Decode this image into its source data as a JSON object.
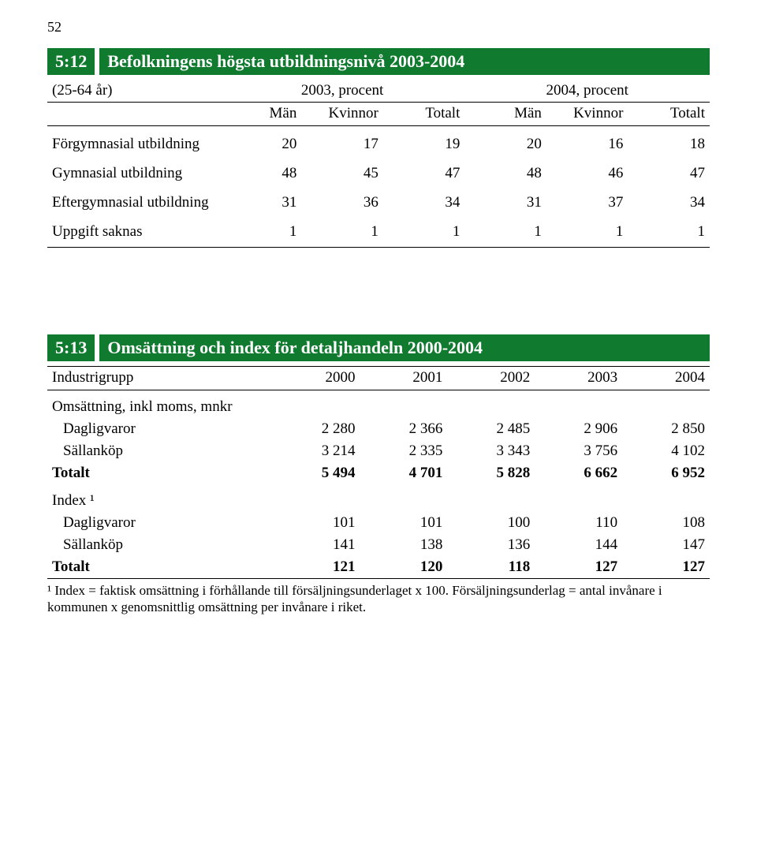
{
  "page_number": "52",
  "section1": {
    "num": "5:12",
    "title": "Befolkningens högsta utbildningsnivå 2003-2004",
    "subheader_left": "(25-64 år)",
    "year_a": "2003, procent",
    "year_b": "2004, procent",
    "col_labels": {
      "man": "Män",
      "kvinnor": "Kvinnor",
      "totalt": "Totalt"
    },
    "rows": [
      {
        "label": "Förgymnasial utbildning",
        "v": [
          "20",
          "17",
          "19",
          "20",
          "16",
          "18"
        ]
      },
      {
        "label": "Gymnasial utbildning",
        "v": [
          "48",
          "45",
          "47",
          "48",
          "46",
          "47"
        ]
      },
      {
        "label": "Eftergymnasial utbildning",
        "v": [
          "31",
          "36",
          "34",
          "31",
          "37",
          "34"
        ]
      },
      {
        "label": "Uppgift saknas",
        "v": [
          "1",
          "1",
          "1",
          "1",
          "1",
          "1"
        ]
      }
    ]
  },
  "section2": {
    "num": "5:13",
    "title": "Omsättning och index för detaljhandeln 2000-2004",
    "col0": "Industrigrupp",
    "years": [
      "2000",
      "2001",
      "2002",
      "2003",
      "2004"
    ],
    "group1_label": "Omsättning, inkl moms, mnkr",
    "group1_rows": [
      {
        "label": "Dagligvaror",
        "v": [
          "2 280",
          "2 366",
          "2 485",
          "2 906",
          "2 850"
        ]
      },
      {
        "label": "Sällanköp",
        "v": [
          "3 214",
          "2 335",
          "3 343",
          "3 756",
          "4 102"
        ]
      }
    ],
    "group1_total": {
      "label": "Totalt",
      "v": [
        "5 494",
        "4 701",
        "5 828",
        "6 662",
        "6 952"
      ]
    },
    "group2_label": "Index ¹",
    "group2_rows": [
      {
        "label": "Dagligvaror",
        "v": [
          "101",
          "101",
          "100",
          "110",
          "108"
        ]
      },
      {
        "label": "Sällanköp",
        "v": [
          "141",
          "138",
          "136",
          "144",
          "147"
        ]
      }
    ],
    "group2_total": {
      "label": "Totalt",
      "v": [
        "121",
        "120",
        "118",
        "127",
        "127"
      ]
    },
    "footnote": "¹  Index = faktisk omsättning i förhållande till försäljningsunderlaget x 100. Försäljningsunderlag = antal invånare    i kommunen x genomsnittlig omsättning per invånare i riket."
  },
  "colors": {
    "header_bg": "#107a2f",
    "header_fg": "#ffffff",
    "text": "#000000",
    "page_bg": "#ffffff"
  }
}
